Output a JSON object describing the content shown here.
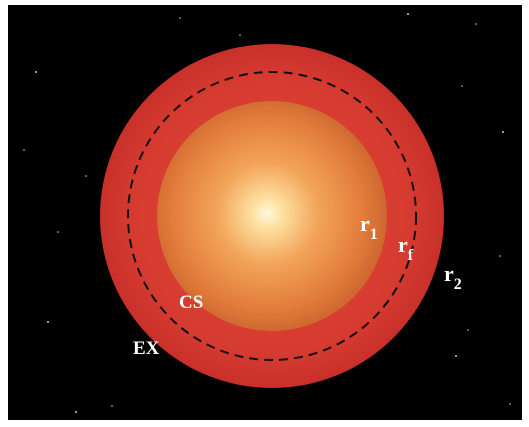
{
  "labels": [
    {
      "text": "r",
      "sub": "1"
    },
    {
      "text": "r",
      "sub": "f"
    },
    {
      "text": "r",
      "sub": "2"
    },
    {
      "text": "CS"
    },
    {
      "text": "EX"
    }
  ]
}
